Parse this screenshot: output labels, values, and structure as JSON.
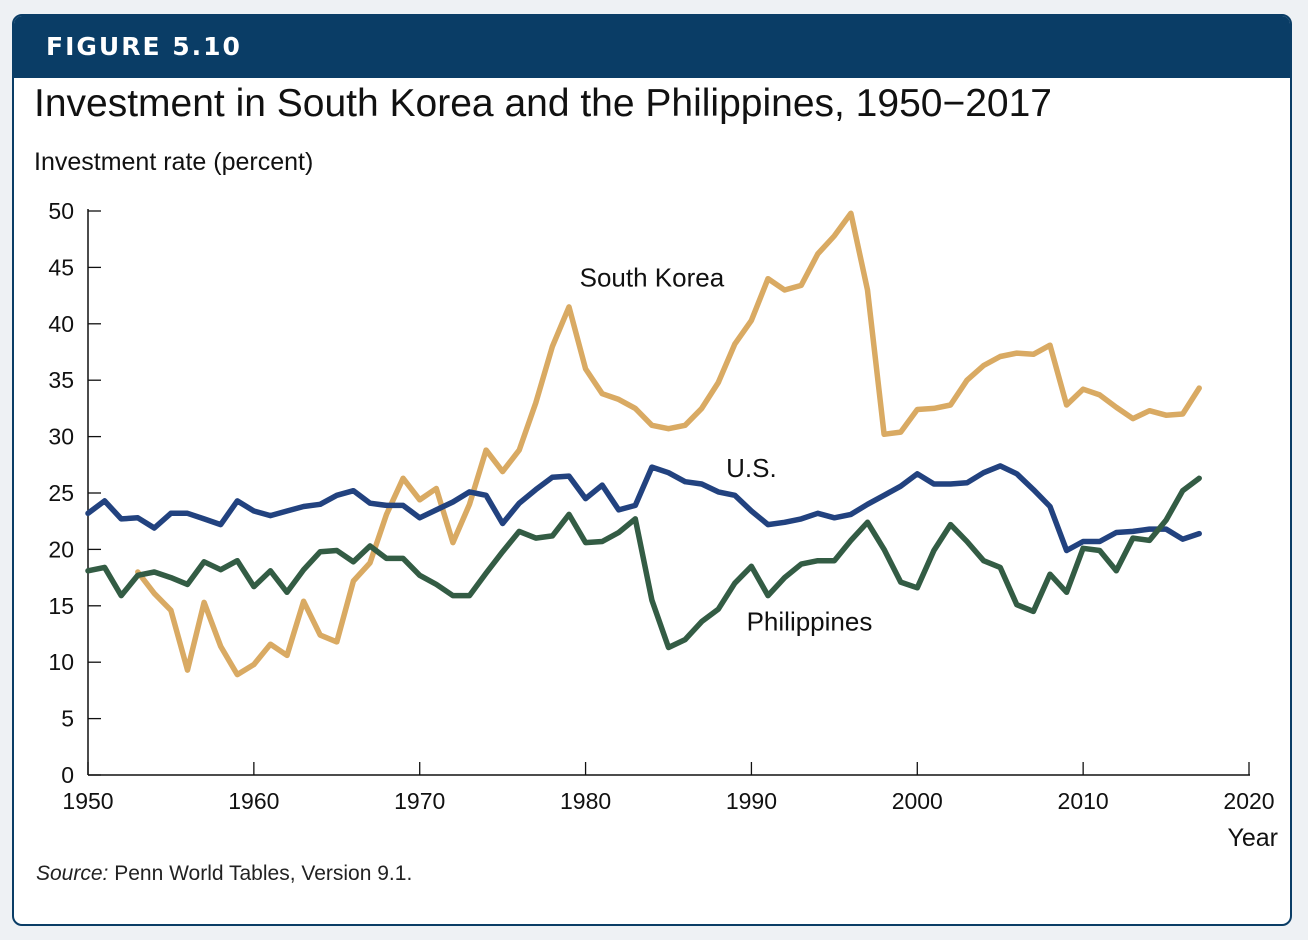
{
  "banner": {
    "label": "FIGURE 5.10"
  },
  "chart_data": {
    "type": "line",
    "title": "Investment in South Korea and the Philippines, 1950−2017",
    "ylabel": "Investment rate (percent)",
    "xlabel": "Year",
    "xlim": [
      1950,
      2020
    ],
    "ylim": [
      0,
      50
    ],
    "xticks": [
      1950,
      1960,
      1970,
      1980,
      1990,
      2000,
      2010,
      2020
    ],
    "yticks": [
      0,
      5,
      10,
      15,
      20,
      25,
      30,
      35,
      40,
      45,
      50
    ],
    "grid": false,
    "legend": "none",
    "colors": {
      "south_korea": "#d9aa63",
      "us": "#22427f",
      "philippines": "#335c44"
    },
    "series": [
      {
        "name": "South Korea",
        "color": "#d9aa63",
        "x": [
          1953,
          1954,
          1955,
          1956,
          1957,
          1958,
          1959,
          1960,
          1961,
          1962,
          1963,
          1964,
          1965,
          1966,
          1967,
          1968,
          1969,
          1970,
          1971,
          1972,
          1973,
          1974,
          1975,
          1976,
          1977,
          1978,
          1979,
          1980,
          1981,
          1982,
          1983,
          1984,
          1985,
          1986,
          1987,
          1988,
          1989,
          1990,
          1991,
          1992,
          1993,
          1994,
          1995,
          1996,
          1997,
          1998,
          1999,
          2000,
          2001,
          2002,
          2003,
          2004,
          2005,
          2006,
          2007,
          2008,
          2009,
          2010,
          2011,
          2012,
          2013,
          2014,
          2015,
          2016,
          2017
        ],
        "values": [
          18.0,
          16.1,
          14.6,
          9.3,
          15.3,
          11.4,
          8.9,
          9.8,
          11.6,
          10.6,
          15.4,
          12.4,
          11.8,
          17.2,
          18.8,
          23.1,
          26.3,
          24.4,
          25.4,
          20.6,
          24.0,
          28.8,
          26.9,
          28.8,
          33.0,
          38.0,
          41.5,
          36.0,
          33.8,
          33.3,
          32.5,
          31.0,
          30.7,
          31.0,
          32.5,
          34.8,
          38.2,
          40.3,
          44.0,
          43.0,
          43.4,
          46.2,
          47.8,
          49.8,
          43.0,
          30.2,
          30.4,
          32.4,
          32.5,
          32.8,
          35.0,
          36.3,
          37.1,
          37.4,
          37.3,
          38.1,
          32.8,
          34.2,
          33.7,
          32.6,
          31.6,
          32.3,
          31.9,
          32.0,
          34.3
        ]
      },
      {
        "name": "U.S.",
        "color": "#22427f",
        "x": [
          1950,
          1951,
          1952,
          1953,
          1954,
          1955,
          1956,
          1957,
          1958,
          1959,
          1960,
          1961,
          1962,
          1963,
          1964,
          1965,
          1966,
          1967,
          1968,
          1969,
          1970,
          1971,
          1972,
          1973,
          1974,
          1975,
          1976,
          1977,
          1978,
          1979,
          1980,
          1981,
          1982,
          1983,
          1984,
          1985,
          1986,
          1987,
          1988,
          1989,
          1990,
          1991,
          1992,
          1993,
          1994,
          1995,
          1996,
          1997,
          1998,
          1999,
          2000,
          2001,
          2002,
          2003,
          2004,
          2005,
          2006,
          2007,
          2008,
          2009,
          2010,
          2011,
          2012,
          2013,
          2014,
          2015,
          2016,
          2017
        ],
        "values": [
          23.2,
          24.3,
          22.7,
          22.8,
          21.9,
          23.2,
          23.2,
          22.7,
          22.2,
          24.3,
          23.4,
          23.0,
          23.4,
          23.8,
          24.0,
          24.8,
          25.2,
          24.1,
          23.9,
          23.9,
          22.8,
          23.5,
          24.2,
          25.1,
          24.8,
          22.3,
          24.1,
          25.3,
          26.4,
          26.5,
          24.5,
          25.7,
          23.5,
          23.9,
          27.3,
          26.8,
          26.0,
          25.8,
          25.1,
          24.8,
          23.4,
          22.2,
          22.4,
          22.7,
          23.2,
          22.8,
          23.1,
          24.0,
          24.8,
          25.6,
          26.7,
          25.8,
          25.8,
          25.9,
          26.8,
          27.4,
          26.7,
          25.3,
          23.8,
          19.9,
          20.7,
          20.7,
          21.5,
          21.6,
          21.8,
          21.8,
          20.9,
          21.4
        ]
      },
      {
        "name": "Philippines",
        "color": "#335c44",
        "x": [
          1950,
          1951,
          1952,
          1953,
          1954,
          1955,
          1956,
          1957,
          1958,
          1959,
          1960,
          1961,
          1962,
          1963,
          1964,
          1965,
          1966,
          1967,
          1968,
          1969,
          1970,
          1971,
          1972,
          1973,
          1974,
          1975,
          1976,
          1977,
          1978,
          1979,
          1980,
          1981,
          1982,
          1983,
          1984,
          1985,
          1986,
          1987,
          1988,
          1989,
          1990,
          1991,
          1992,
          1993,
          1994,
          1995,
          1996,
          1997,
          1998,
          1999,
          2000,
          2001,
          2002,
          2003,
          2004,
          2005,
          2006,
          2007,
          2008,
          2009,
          2010,
          2011,
          2012,
          2013,
          2014,
          2015,
          2016,
          2017
        ],
        "values": [
          18.1,
          18.4,
          15.9,
          17.7,
          18.0,
          17.5,
          16.9,
          18.9,
          18.2,
          19.0,
          16.7,
          18.1,
          16.2,
          18.2,
          19.8,
          19.9,
          18.9,
          20.3,
          19.2,
          19.2,
          17.7,
          16.9,
          15.9,
          15.9,
          17.9,
          19.8,
          21.6,
          21.0,
          21.2,
          23.1,
          20.6,
          20.7,
          21.5,
          22.7,
          15.5,
          11.3,
          12.0,
          13.6,
          14.7,
          17.0,
          18.5,
          15.9,
          17.5,
          18.7,
          19.0,
          19.0,
          20.8,
          22.4,
          20.0,
          17.1,
          16.6,
          19.9,
          22.2,
          20.7,
          19.0,
          18.4,
          15.1,
          14.5,
          17.8,
          16.2,
          20.1,
          19.9,
          18.1,
          21.0,
          20.8,
          22.6,
          25.2,
          26.3
        ]
      }
    ],
    "annotations": [
      {
        "text": "South Korea",
        "series": "South Korea",
        "x": 1984,
        "y": 43.3
      },
      {
        "text": "U.S.",
        "series": "U.S.",
        "x": 1990,
        "y": 26.4
      },
      {
        "text": "Philippines",
        "series": "Philippines",
        "x": 1993.5,
        "y": 12.8
      }
    ]
  },
  "source": {
    "lead": "Source:",
    "text": " Penn World Tables, Version 9.1."
  }
}
